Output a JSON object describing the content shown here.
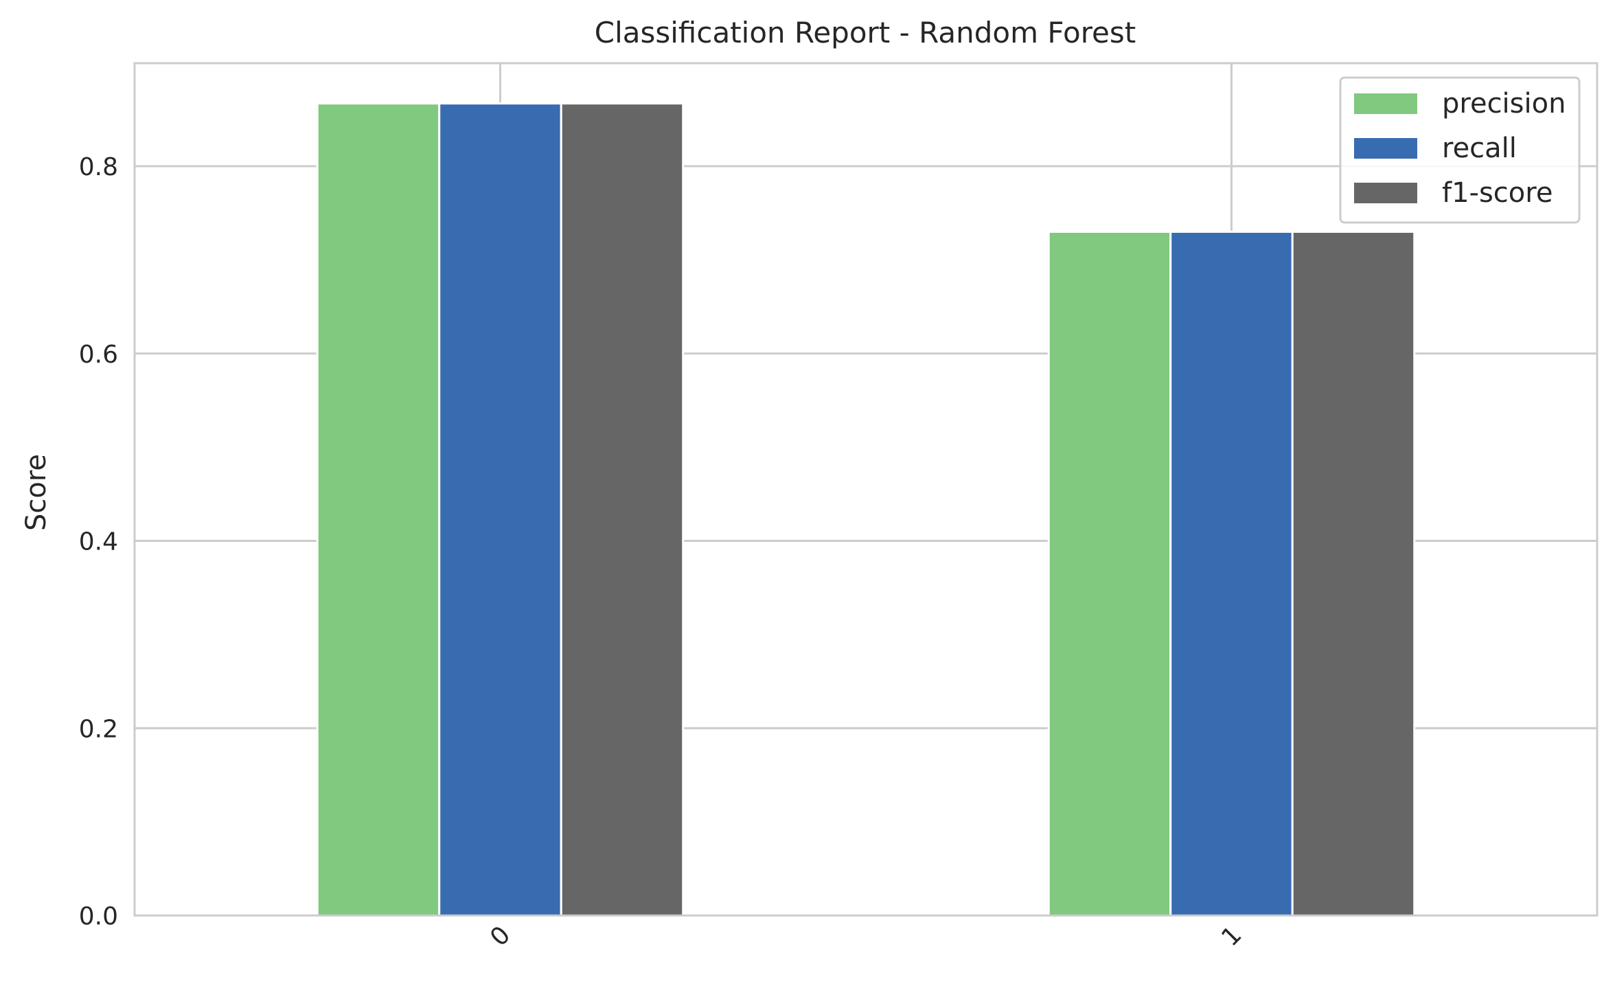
{
  "chart_data": {
    "type": "bar",
    "title": "Classification Report - Random Forest",
    "xlabel": "",
    "ylabel": "Score",
    "categories": [
      "0",
      "1"
    ],
    "series": [
      {
        "name": "precision",
        "color": "#80c97f",
        "values": [
          0.867,
          0.73
        ]
      },
      {
        "name": "recall",
        "color": "#386cb0",
        "values": [
          0.867,
          0.73
        ]
      },
      {
        "name": "f1-score",
        "color": "#666666",
        "values": [
          0.867,
          0.73
        ]
      }
    ],
    "ylim": [
      0,
      0.91
    ],
    "yticks": [
      0.0,
      0.2,
      0.4,
      0.6,
      0.8
    ],
    "ytick_labels": [
      "0.0",
      "0.2",
      "0.4",
      "0.6",
      "0.8"
    ],
    "grid": true,
    "legend_position": "top-right",
    "xtick_rotation": "45"
  }
}
